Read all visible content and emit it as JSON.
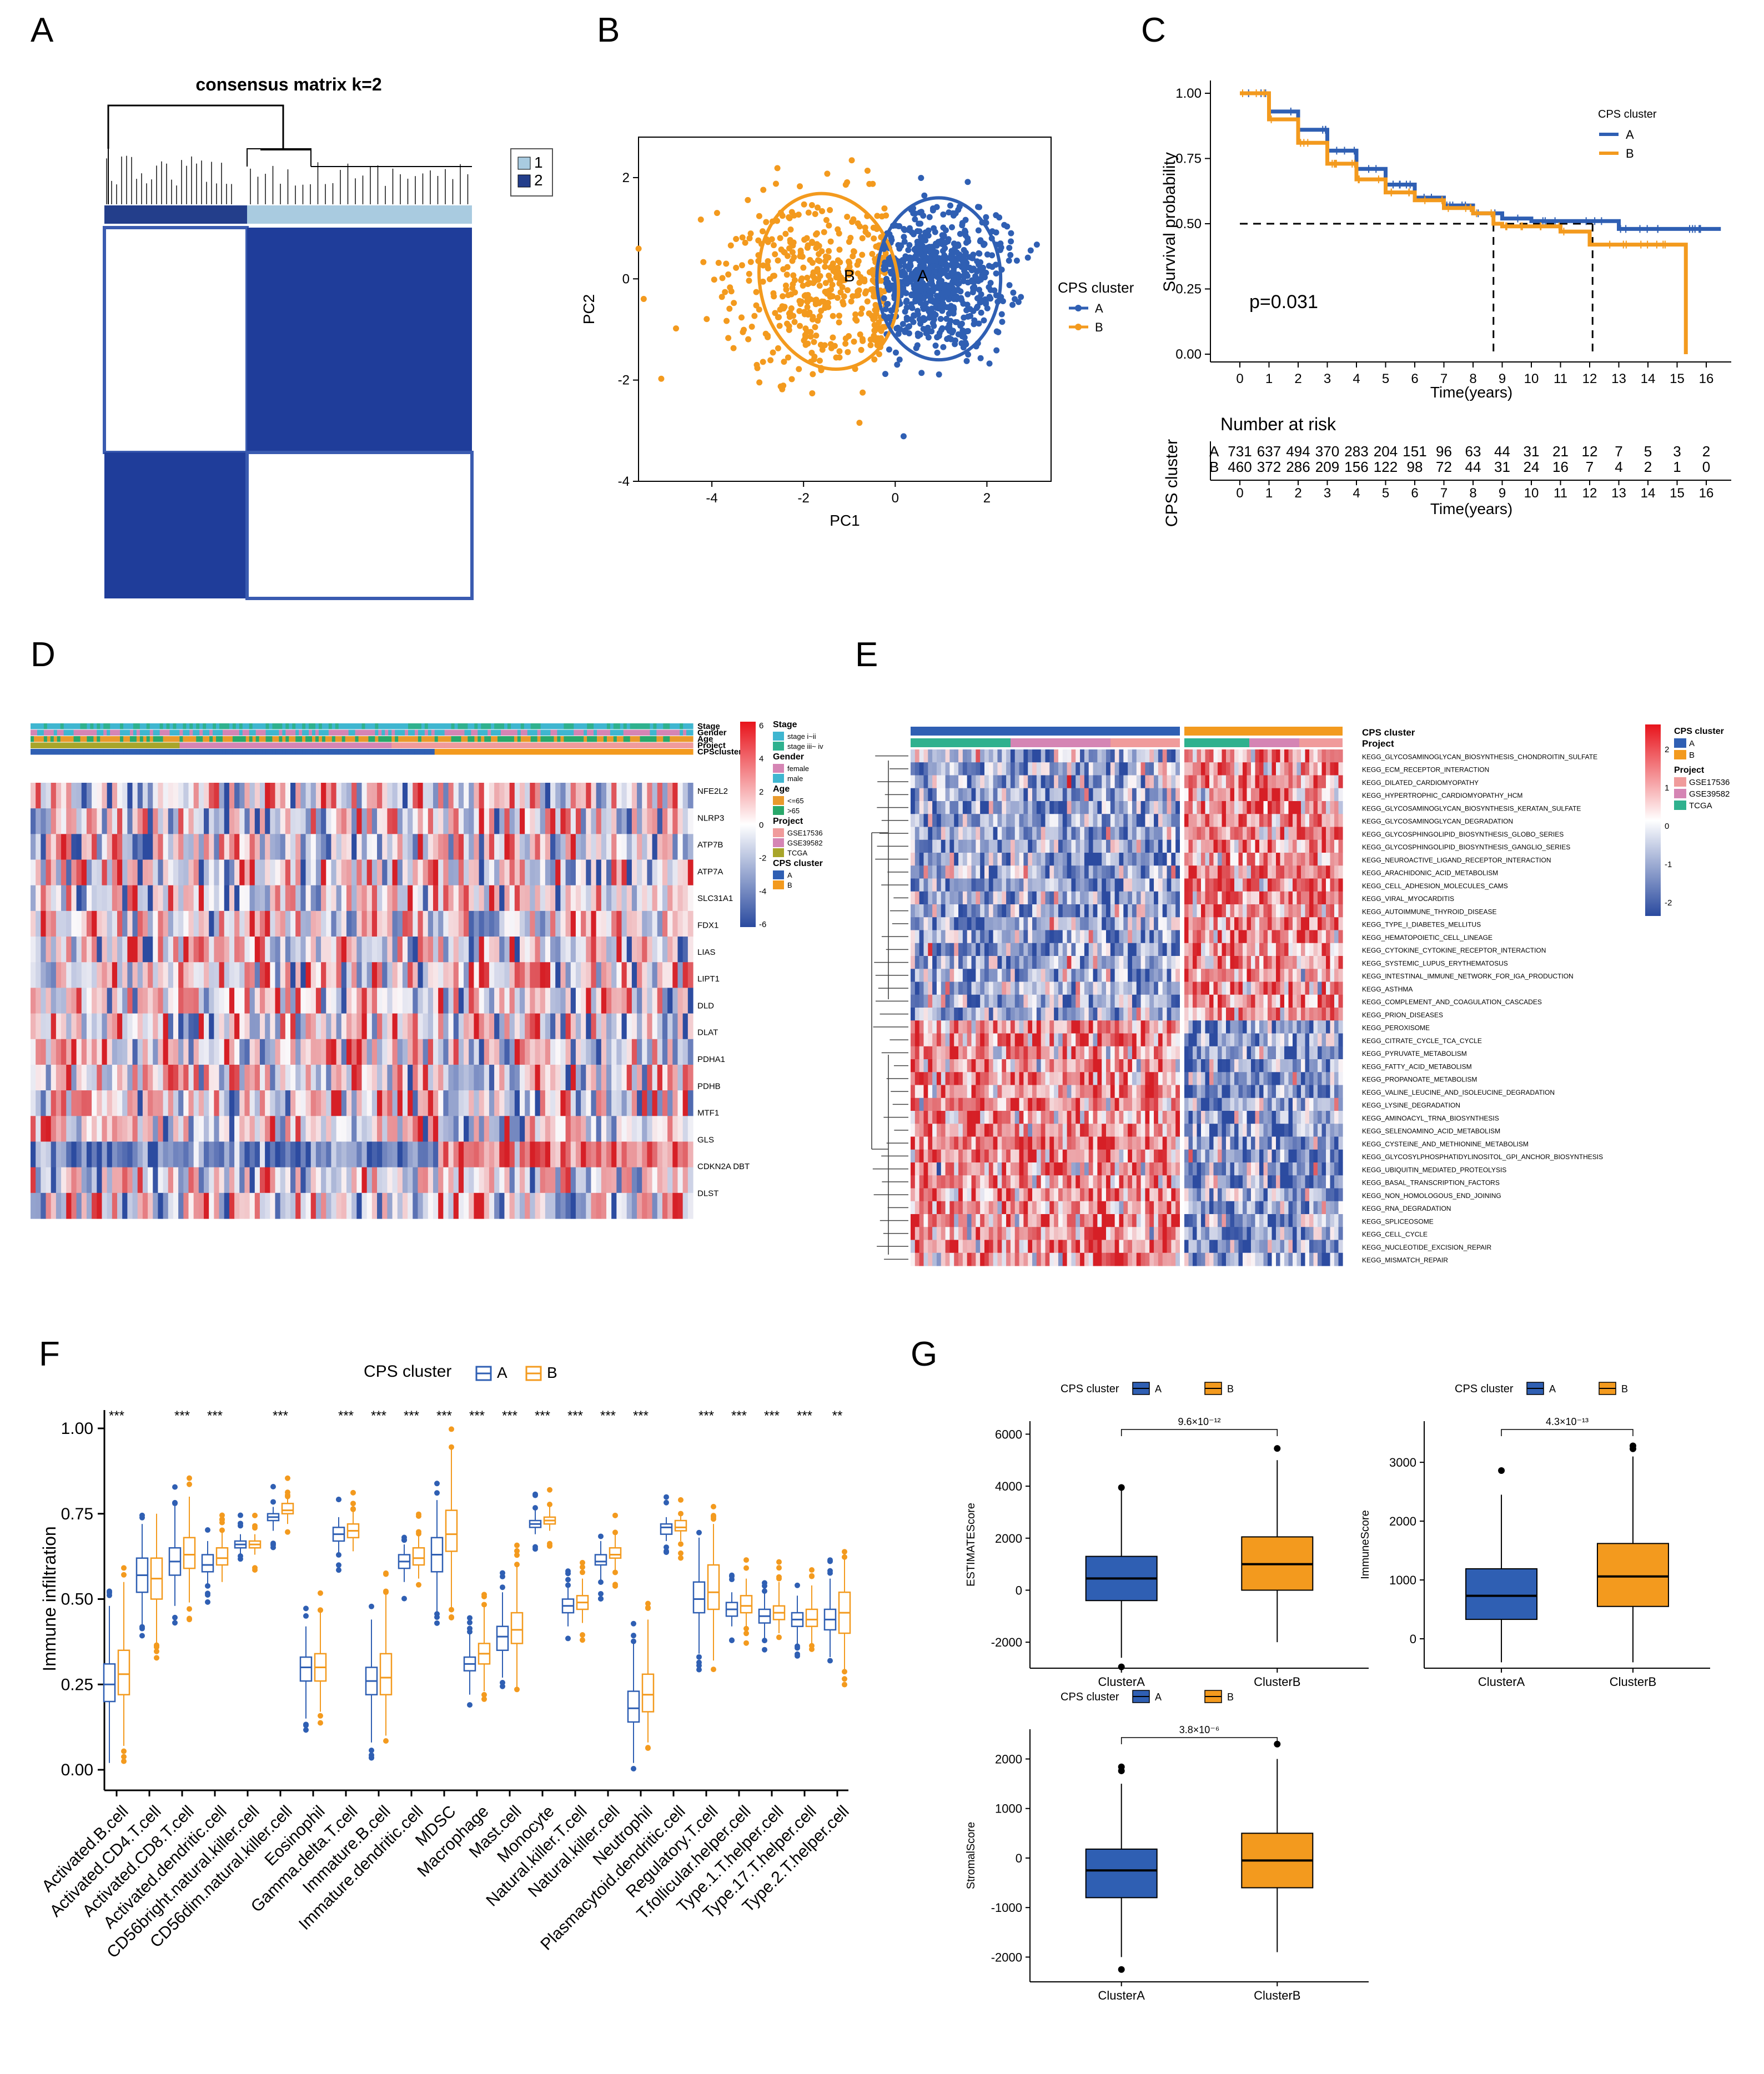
{
  "panel_labels": [
    "A",
    "B",
    "C",
    "D",
    "E",
    "F",
    "G"
  ],
  "colors": {
    "A": "#2f5fb3",
    "B": "#f39a1e",
    "dark": "#233e8b",
    "light": "#a9cbe0",
    "heat_red": "#d61f26",
    "heat_blue": "#3252a4"
  },
  "chart_data": [
    {
      "panel": "A",
      "type": "heatmap",
      "title": "consensus matrix k=2",
      "legend": [
        "1",
        "2"
      ],
      "blocks": [
        [
          0,
          1
        ],
        [
          1,
          0
        ]
      ]
    },
    {
      "panel": "B",
      "type": "scatter",
      "xlabel": "PC1",
      "ylabel": "PC2",
      "xlim": [
        -5.6,
        3.4
      ],
      "ylim": [
        -4,
        2.8
      ],
      "xticks": [
        "-4",
        "-2",
        "0",
        "2"
      ],
      "yticks": [
        "-4",
        "-2",
        "0",
        "2"
      ],
      "legend_title": "CPS cluster",
      "legend": [
        "A",
        "B"
      ],
      "ellipse_labels": [
        "B",
        "A"
      ],
      "clusters": [
        {
          "name": "A",
          "center": [
            0.9,
            0.0
          ],
          "n": 731
        },
        {
          "name": "B",
          "center": [
            -1.6,
            0.0
          ],
          "n": 460
        }
      ]
    },
    {
      "panel": "C",
      "type": "line",
      "xlabel": "Time(years)",
      "ylabel": "Survival probability",
      "xticks": [
        "0",
        "1",
        "2",
        "3",
        "4",
        "5",
        "6",
        "7",
        "8",
        "9",
        "10",
        "11",
        "12",
        "13",
        "14",
        "15",
        "16"
      ],
      "yticks": [
        "0.00",
        "0.25",
        "0.50",
        "0.75",
        "1.00"
      ],
      "legend_title": "CPS cluster",
      "legend": [
        "A",
        "B"
      ],
      "pvalue": "p=0.031",
      "series": [
        {
          "name": "A",
          "x": [
            0,
            1,
            2,
            3,
            4,
            5,
            6,
            7,
            8,
            9,
            10,
            12,
            13,
            16.5
          ],
          "y": [
            1.0,
            0.93,
            0.86,
            0.78,
            0.71,
            0.65,
            0.6,
            0.57,
            0.54,
            0.52,
            0.51,
            0.51,
            0.48,
            0.48
          ]
        },
        {
          "name": "B",
          "x": [
            0,
            1,
            2,
            3,
            4,
            5,
            6,
            7,
            8,
            8.7,
            9,
            11,
            12,
            13,
            15,
            15.3
          ],
          "y": [
            1.0,
            0.9,
            0.81,
            0.73,
            0.67,
            0.62,
            0.59,
            0.56,
            0.54,
            0.5,
            0.49,
            0.47,
            0.42,
            0.42,
            0.42,
            0.0
          ]
        }
      ],
      "median_lines": [
        8.7,
        12.1
      ],
      "risk_table": {
        "title": "Number at risk",
        "ylabel": "CPS cluster",
        "rows": [
          {
            "label": "A",
            "values": [
              "731",
              "637",
              "494",
              "370",
              "283",
              "204",
              "151",
              "96",
              "63",
              "44",
              "31",
              "21",
              "12",
              "7",
              "5",
              "3",
              "2"
            ]
          },
          {
            "label": "B",
            "values": [
              "460",
              "372",
              "286",
              "209",
              "156",
              "122",
              "98",
              "72",
              "44",
              "31",
              "24",
              "16",
              "7",
              "4",
              "2",
              "1",
              "0"
            ]
          }
        ]
      }
    },
    {
      "panel": "D",
      "type": "heatmap",
      "annotation_rows": [
        "Stage",
        "Gender",
        "Age",
        "Project",
        "CPScluster"
      ],
      "genes": [
        "NFE2L2",
        "NLRP3",
        "ATP7B",
        "ATP7A",
        "SLC31A1",
        "FDX1",
        "LIAS",
        "LIPT1",
        "DLD",
        "DLAT",
        "PDHA1",
        "PDHB",
        "MTF1",
        "GLS",
        "CDKN2A DBT",
        "DLST"
      ],
      "scale_ticks": [
        "6",
        "4",
        "2",
        "0",
        "-2",
        "-4",
        "-6"
      ],
      "legend_groups": [
        {
          "title": "Stage",
          "items": [
            {
              "label": "stage i~ii",
              "color": "#3fb6d0"
            },
            {
              "label": "stage iii~ iv",
              "color": "#2fb18e"
            }
          ]
        },
        {
          "title": "Gender",
          "items": [
            {
              "label": "female",
              "color": "#d585b4"
            },
            {
              "label": "male",
              "color": "#3fb6d0"
            }
          ]
        },
        {
          "title": "Age",
          "items": [
            {
              "label": "<=65",
              "color": "#e99a2c"
            },
            {
              "label": ">65",
              "color": "#29a86a"
            }
          ]
        },
        {
          "title": "Project",
          "items": [
            {
              "label": "GSE17536",
              "color": "#f09b9b"
            },
            {
              "label": "GSE39582",
              "color": "#d585b4"
            },
            {
              "label": "TCGA",
              "color": "#a8a52a"
            }
          ]
        },
        {
          "title": "CPS cluster",
          "items": [
            {
              "label": "A",
              "color": "#2f5fb3"
            },
            {
              "label": "B",
              "color": "#f39a1e"
            }
          ]
        }
      ]
    },
    {
      "panel": "E",
      "type": "heatmap",
      "annotation_rows": [
        "CPS cluster",
        "Project"
      ],
      "pathways": [
        "KEGG_GLYCOSAMINOGLYCAN_BIOSYNTHESIS_CHONDROITIN_SULFATE",
        "KEGG_ECM_RECEPTOR_INTERACTION",
        "KEGG_DILATED_CARDIOMYOPATHY",
        "KEGG_HYPERTROPHIC_CARDIOMYOPATHY_HCM",
        "KEGG_GLYCOSAMINOGLYCAN_BIOSYNTHESIS_KERATAN_SULFATE",
        "KEGG_GLYCOSAMINOGLYCAN_DEGRADATION",
        "KEGG_GLYCOSPHINGOLIPID_BIOSYNTHESIS_GLOBO_SERIES",
        "KEGG_GLYCOSPHINGOLIPID_BIOSYNTHESIS_GANGLIO_SERIES",
        "KEGG_NEUROACTIVE_LIGAND_RECEPTOR_INTERACTION",
        "KEGG_ARACHIDONIC_ACID_METABOLISM",
        "KEGG_CELL_ADHESION_MOLECULES_CAMS",
        "KEGG_VIRAL_MYOCARDITIS",
        "KEGG_AUTOIMMUNE_THYROID_DISEASE",
        "KEGG_TYPE_I_DIABETES_MELLITUS",
        "KEGG_HEMATOPOIETIC_CELL_LINEAGE",
        "KEGG_CYTOKINE_CYTOKINE_RECEPTOR_INTERACTION",
        "KEGG_SYSTEMIC_LUPUS_ERYTHEMATOSUS",
        "KEGG_INTESTINAL_IMMUNE_NETWORK_FOR_IGA_PRODUCTION",
        "KEGG_ASTHMA",
        "KEGG_COMPLEMENT_AND_COAGULATION_CASCADES",
        "KEGG_PRION_DISEASES",
        "KEGG_PEROXISOME",
        "KEGG_CITRATE_CYCLE_TCA_CYCLE",
        "KEGG_PYRUVATE_METABOLISM",
        "KEGG_FATTY_ACID_METABOLISM",
        "KEGG_PROPANOATE_METABOLISM",
        "KEGG_VALINE_LEUCINE_AND_ISOLEUCINE_DEGRADATION",
        "KEGG_LYSINE_DEGRADATION",
        "KEGG_AMINOACYL_TRNA_BIOSYNTHESIS",
        "KEGG_SELENOAMINO_ACID_METABOLISM",
        "KEGG_CYSTEINE_AND_METHIONINE_METABOLISM",
        "KEGG_GLYCOSYLPHOSPHATIDYLINOSITOL_GPI_ANCHOR_BIOSYNTHESIS",
        "KEGG_UBIQUITIN_MEDIATED_PROTEOLYSIS",
        "KEGG_BASAL_TRANSCRIPTION_FACTORS",
        "KEGG_NON_HOMOLOGOUS_END_JOINING",
        "KEGG_RNA_DEGRADATION",
        "KEGG_SPLICEOSOME",
        "KEGG_CELL_CYCLE",
        "KEGG_NUCLEOTIDE_EXCISION_REPAIR",
        "KEGG_MISMATCH_REPAIR"
      ],
      "scale_ticks": [
        "2",
        "1",
        "0",
        "-1",
        "-2"
      ],
      "legend_groups": [
        {
          "title": "CPS cluster",
          "items": [
            {
              "label": "A",
              "color": "#2f5fb3"
            },
            {
              "label": "B",
              "color": "#f39a1e"
            }
          ]
        },
        {
          "title": "Project",
          "items": [
            {
              "label": "GSE17536",
              "color": "#f09b9b"
            },
            {
              "label": "GSE39582",
              "color": "#d585b4"
            },
            {
              "label": "TCGA",
              "color": "#2fb18e"
            }
          ]
        }
      ]
    },
    {
      "panel": "F",
      "type": "box",
      "ylabel": "Immune infiltration",
      "ylim": [
        0,
        1.0
      ],
      "yticks": [
        "0.00",
        "0.25",
        "0.50",
        "0.75",
        "1.00"
      ],
      "legend_title": "CPS cluster",
      "legend": [
        "A",
        "B"
      ],
      "categories": [
        "Activated.B.cell",
        "Activated.CD4.T.cell",
        "Activated.CD8.T.cell",
        "Activated.dendritic.cell",
        "CD56bright.natural.killer.cell",
        "CD56dim.natural.killer.cell",
        "Eosinophil",
        "Gamma.delta.T.cell",
        "Immature.B.cell",
        "Immature.dendritic.cell",
        "MDSC",
        "Macrophage",
        "Mast.cell",
        "Monocyte",
        "Natural.killer.T.cell",
        "Natural.killer.cell",
        "Neutrophil",
        "Plasmacytoid.dendritic.cell",
        "Regulatory.T.cell",
        "T.follicular.helper.cell",
        "Type.1.T.helper.cell",
        "Type.17.T.helper.cell",
        "Type.2.T.helper.cell"
      ],
      "significance": [
        "***",
        "",
        "***",
        "***",
        "",
        "***",
        "",
        "***",
        "***",
        "***",
        "***",
        "***",
        "***",
        "***",
        "***",
        "***",
        "***",
        "",
        "***",
        "***",
        "***",
        "***",
        "**"
      ],
      "series": [
        {
          "name": "A",
          "median": [
            0.25,
            0.57,
            0.61,
            0.6,
            0.66,
            0.74,
            0.3,
            0.69,
            0.26,
            0.61,
            0.63,
            0.31,
            0.39,
            0.72,
            0.48,
            0.61,
            0.18,
            0.71,
            0.5,
            0.47,
            0.45,
            0.44,
            0.44
          ],
          "q1": [
            0.2,
            0.52,
            0.57,
            0.58,
            0.65,
            0.73,
            0.26,
            0.67,
            0.22,
            0.59,
            0.58,
            0.29,
            0.35,
            0.71,
            0.46,
            0.6,
            0.14,
            0.69,
            0.46,
            0.45,
            0.43,
            0.42,
            0.41
          ],
          "q3": [
            0.31,
            0.62,
            0.65,
            0.63,
            0.67,
            0.75,
            0.33,
            0.71,
            0.3,
            0.63,
            0.68,
            0.33,
            0.42,
            0.73,
            0.5,
            0.63,
            0.23,
            0.72,
            0.55,
            0.49,
            0.47,
            0.46,
            0.47
          ],
          "low": [
            0.02,
            0.42,
            0.48,
            0.54,
            0.63,
            0.7,
            0.15,
            0.63,
            0.08,
            0.55,
            0.46,
            0.22,
            0.27,
            0.69,
            0.42,
            0.55,
            0.02,
            0.67,
            0.34,
            0.42,
            0.38,
            0.37,
            0.33
          ],
          "high": [
            0.48,
            0.72,
            0.78,
            0.67,
            0.69,
            0.77,
            0.42,
            0.74,
            0.44,
            0.66,
            0.79,
            0.4,
            0.52,
            0.76,
            0.54,
            0.67,
            0.37,
            0.74,
            0.68,
            0.52,
            0.52,
            0.51,
            0.56
          ]
        },
        {
          "name": "B",
          "median": [
            0.28,
            0.56,
            0.63,
            0.62,
            0.66,
            0.76,
            0.3,
            0.7,
            0.27,
            0.62,
            0.69,
            0.34,
            0.41,
            0.73,
            0.49,
            0.63,
            0.22,
            0.71,
            0.52,
            0.48,
            0.46,
            0.44,
            0.46
          ],
          "q1": [
            0.22,
            0.5,
            0.59,
            0.6,
            0.65,
            0.75,
            0.26,
            0.68,
            0.22,
            0.6,
            0.64,
            0.31,
            0.37,
            0.72,
            0.47,
            0.62,
            0.17,
            0.7,
            0.47,
            0.46,
            0.44,
            0.42,
            0.4
          ],
          "q3": [
            0.35,
            0.62,
            0.68,
            0.65,
            0.67,
            0.78,
            0.34,
            0.72,
            0.34,
            0.65,
            0.76,
            0.37,
            0.46,
            0.74,
            0.51,
            0.65,
            0.28,
            0.73,
            0.6,
            0.51,
            0.48,
            0.47,
            0.52
          ],
          "low": [
            0.07,
            0.37,
            0.49,
            0.55,
            0.63,
            0.72,
            0.17,
            0.64,
            0.1,
            0.56,
            0.47,
            0.23,
            0.24,
            0.7,
            0.43,
            0.58,
            0.08,
            0.67,
            0.32,
            0.42,
            0.4,
            0.37,
            0.29
          ],
          "high": [
            0.55,
            0.75,
            0.8,
            0.7,
            0.69,
            0.8,
            0.46,
            0.76,
            0.52,
            0.69,
            0.94,
            0.48,
            0.6,
            0.77,
            0.56,
            0.69,
            0.44,
            0.75,
            0.72,
            0.56,
            0.55,
            0.54,
            0.62
          ]
        }
      ]
    },
    {
      "panel": "G1",
      "type": "box",
      "ylabel": "ESTIMATEScore",
      "legend_title": "CPS cluster",
      "legend": [
        "A",
        "B"
      ],
      "categories": [
        "ClusterA",
        "ClusterB"
      ],
      "pvalue": "9.6×10⁻¹²",
      "ylim": [
        -3000,
        6500
      ],
      "yticks": [
        -2000,
        0,
        2000,
        4000,
        6000
      ],
      "boxes": [
        {
          "q1": -400,
          "median": 450,
          "q3": 1300,
          "low": -2600,
          "high": 3900,
          "outliers": [
            3950,
            -2950
          ]
        },
        {
          "q1": 0,
          "median": 1000,
          "q3": 2050,
          "low": -2000,
          "high": 5000,
          "outliers": [
            5450
          ]
        }
      ]
    },
    {
      "panel": "G2",
      "type": "box",
      "ylabel": "ImmuneScore",
      "legend_title": "CPS cluster",
      "legend": [
        "A",
        "B"
      ],
      "categories": [
        "ClusterA",
        "ClusterB"
      ],
      "pvalue": "4.3×10⁻¹³",
      "ylim": [
        -500,
        3700
      ],
      "yticks": [
        0,
        1000,
        2000,
        3000
      ],
      "boxes": [
        {
          "q1": 330,
          "median": 730,
          "q3": 1190,
          "low": -400,
          "high": 2450,
          "outliers": [
            2860
          ]
        },
        {
          "q1": 550,
          "median": 1060,
          "q3": 1620,
          "low": -400,
          "high": 3100,
          "outliers": [
            3230,
            3280
          ]
        }
      ]
    },
    {
      "panel": "G3",
      "type": "box",
      "ylabel": "StromalScore",
      "legend_title": "CPS cluster",
      "legend": [
        "A",
        "B"
      ],
      "categories": [
        "ClusterA",
        "ClusterB"
      ],
      "pvalue": "3.8×10⁻⁶",
      "ylim": [
        -2500,
        2600
      ],
      "yticks": [
        -2000,
        -1000,
        0,
        1000,
        2000
      ],
      "boxes": [
        {
          "q1": -800,
          "median": -250,
          "q3": 180,
          "low": -2000,
          "high": 1500,
          "outliers": [
            1760,
            1840,
            -2250
          ]
        },
        {
          "q1": -600,
          "median": -50,
          "q3": 500,
          "low": -1900,
          "high": 2000,
          "outliers": [
            2300
          ]
        }
      ]
    }
  ]
}
